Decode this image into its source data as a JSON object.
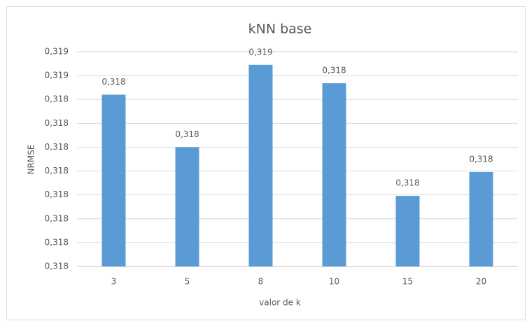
{
  "chart_data": {
    "type": "bar",
    "title": "kNN base",
    "x_label": "valor de k",
    "y_label": "NRMSE",
    "categories": [
      "3",
      "5",
      "8",
      "10",
      "15",
      "20"
    ],
    "values": [
      0.31842,
      0.3182,
      0.318545,
      0.318468,
      0.317996,
      0.318096
    ],
    "value_labels": [
      "0,318",
      "0,318",
      "0,319",
      "0,318",
      "0,318",
      "0,318"
    ],
    "color": "#5b9bd5",
    "ylim": [
      0.3177,
      0.3186
    ],
    "yticks": [
      {
        "value": 0.3177,
        "label": "0,318"
      },
      {
        "value": 0.3178,
        "label": "0,318"
      },
      {
        "value": 0.3179,
        "label": "0,318"
      },
      {
        "value": 0.318,
        "label": "0,318"
      },
      {
        "value": 0.3181,
        "label": "0,318"
      },
      {
        "value": 0.3182,
        "label": "0,318"
      },
      {
        "value": 0.3183,
        "label": "0,318"
      },
      {
        "value": 0.3184,
        "label": "0,318"
      },
      {
        "value": 0.3185,
        "label": "0,319"
      },
      {
        "value": 0.3186,
        "label": "0,319"
      }
    ],
    "grid": true
  }
}
